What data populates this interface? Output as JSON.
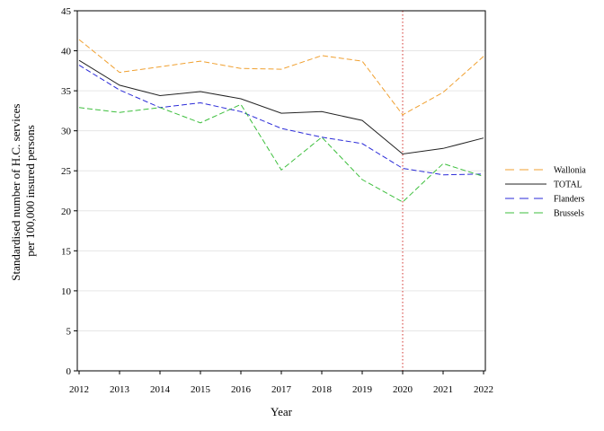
{
  "chart_data": {
    "type": "line",
    "xlabel": "Year",
    "ylabel_lines": [
      "Standardised number of H.C. services",
      "per 100,000 insured persons"
    ],
    "x": [
      2012,
      2013,
      2014,
      2015,
      2016,
      2017,
      2018,
      2019,
      2020,
      2021,
      2022
    ],
    "xticks": [
      "2012",
      "2013",
      "2014",
      "2015",
      "2016",
      "2017",
      "2018",
      "2019",
      "2020",
      "2021",
      "2022"
    ],
    "ylim": [
      0,
      45
    ],
    "yticks": [
      "0",
      "5",
      "10",
      "15",
      "20",
      "25",
      "30",
      "35",
      "40",
      "45"
    ],
    "grid": "horizontal",
    "legend_position": "right",
    "reference_line": {
      "x": 2020,
      "color": "#d9534f",
      "style": "dotted"
    },
    "series": [
      {
        "name": "Wallonia",
        "color": "#f0a030",
        "dash": "dashed",
        "values": [
          41.4,
          37.3,
          38.0,
          38.7,
          37.8,
          37.7,
          39.4,
          38.7,
          32.0,
          34.8,
          39.3
        ]
      },
      {
        "name": "TOTAL",
        "color": "#222222",
        "dash": "solid",
        "values": [
          38.8,
          35.7,
          34.4,
          34.9,
          34.0,
          32.2,
          32.4,
          31.3,
          27.1,
          27.8,
          29.1
        ]
      },
      {
        "name": "Flanders",
        "color": "#2a2ad8",
        "dash": "dashed",
        "values": [
          38.2,
          35.1,
          32.9,
          33.5,
          32.4,
          30.3,
          29.2,
          28.4,
          25.3,
          24.5,
          24.6
        ]
      },
      {
        "name": "Brussels",
        "color": "#3dbf3d",
        "dash": "dashed",
        "values": [
          32.9,
          32.3,
          32.9,
          31.0,
          33.3,
          25.1,
          29.2,
          23.9,
          21.1,
          25.9,
          24.3
        ]
      }
    ]
  }
}
